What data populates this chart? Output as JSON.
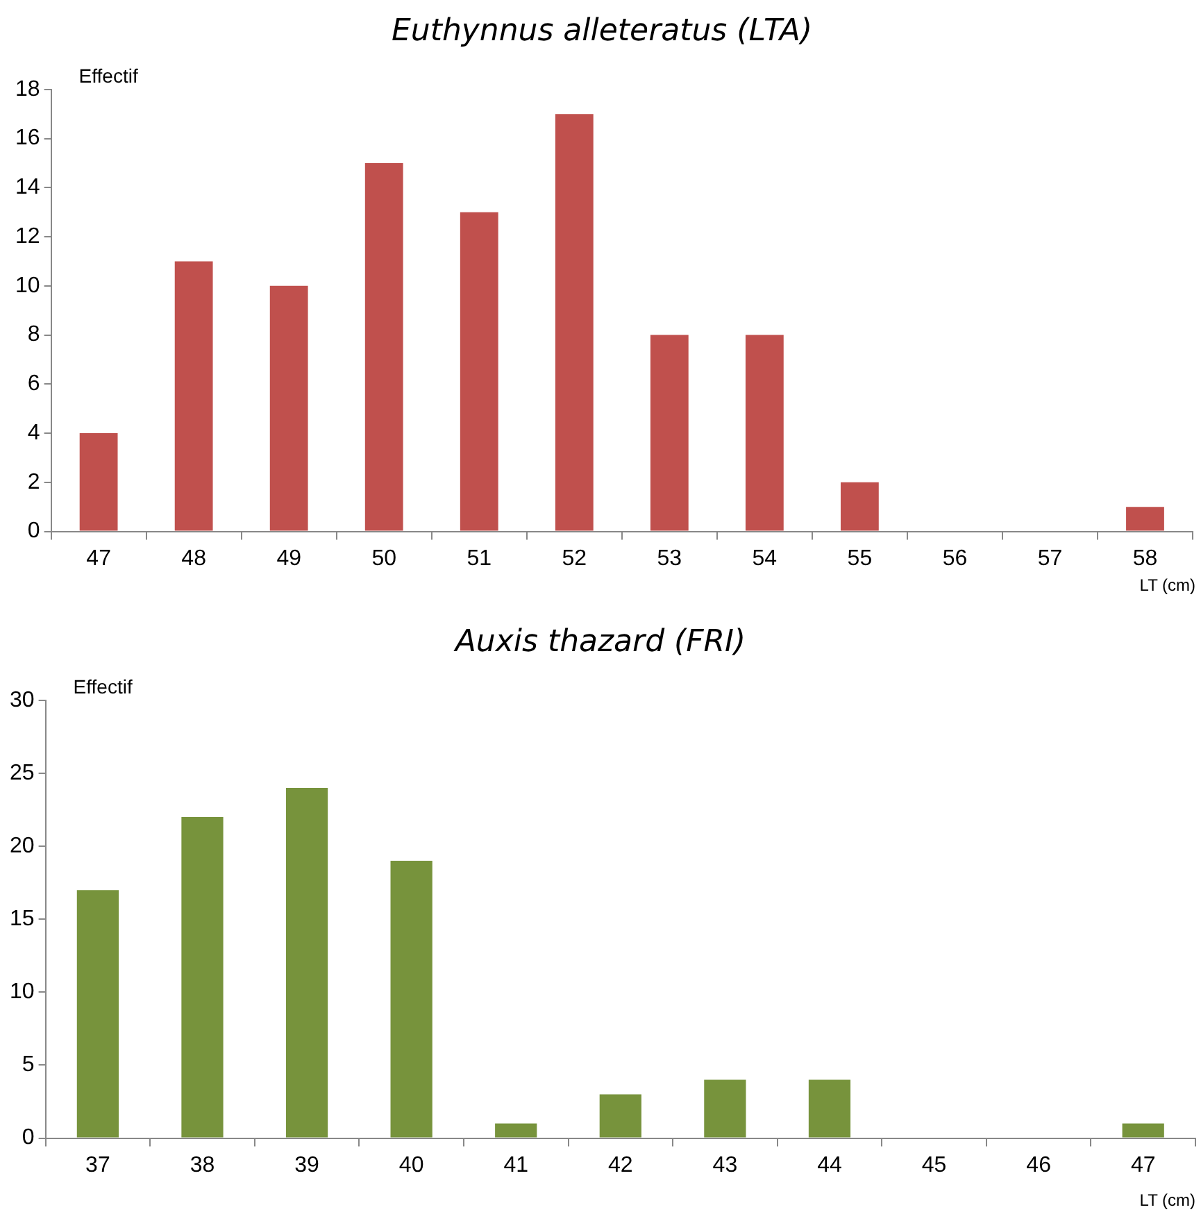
{
  "chart_data": [
    {
      "type": "bar",
      "title": "Euthynnus alleteratus (LTA)",
      "ylabel": "Effectif",
      "xlabel": "LT (cm)",
      "categories": [
        "47",
        "48",
        "49",
        "50",
        "51",
        "52",
        "53",
        "54",
        "55",
        "56",
        "57",
        "58"
      ],
      "series": [
        {
          "color": "#c0504d",
          "values": [
            4,
            11,
            10,
            15,
            13,
            17,
            8,
            8,
            2,
            0,
            0,
            1
          ]
        }
      ],
      "ylim": [
        0,
        18
      ],
      "yticks": [
        0,
        2,
        4,
        6,
        8,
        10,
        12,
        14,
        16,
        18
      ],
      "legend": false
    },
    {
      "type": "bar",
      "title": "Auxis thazard (FRI)",
      "ylabel": "Effectif",
      "xlabel": "LT (cm)",
      "categories": [
        "37",
        "38",
        "39",
        "40",
        "41",
        "42",
        "43",
        "44",
        "45",
        "46",
        "47"
      ],
      "series": [
        {
          "color": "#77933c",
          "values": [
            17,
            22,
            24,
            19,
            1,
            3,
            4,
            4,
            0,
            0,
            1
          ]
        }
      ],
      "ylim": [
        0,
        30
      ],
      "yticks": [
        0,
        5,
        10,
        15,
        20,
        25,
        30
      ],
      "legend": false
    }
  ]
}
